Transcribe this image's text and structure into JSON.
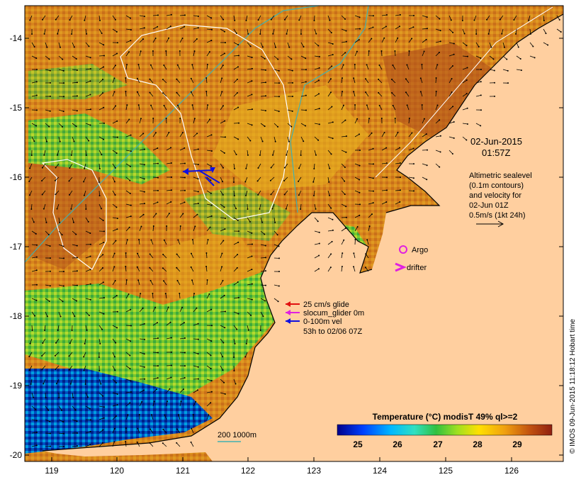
{
  "map": {
    "lon_ticks": [
      "119",
      "120",
      "121",
      "122",
      "123",
      "124",
      "125",
      "126"
    ],
    "lat_ticks": [
      "-14",
      "-15",
      "-16",
      "-17",
      "-18",
      "-19",
      "-20"
    ]
  },
  "timestamp": {
    "date": "02-Jun-2015",
    "time": "01:57Z"
  },
  "altimetry_note": {
    "line1": "Altimetric sealevel",
    "line2": "(0.1m contours)",
    "line3": "and velocity for",
    "line4": "02-Jun 01Z",
    "line5": "0.5m/s (1kt 24h)"
  },
  "markers": {
    "argo": "Argo",
    "drifter": "drifter"
  },
  "legend": {
    "glider_25": "25 cm/s glide",
    "slocum": "slocum_glider 0m",
    "vel": "0-100m vel",
    "vel_period": "53h to 02/06 07Z",
    "colors": {
      "red": "#e01010",
      "magenta": "#e020e0",
      "blue": "#1010e0"
    }
  },
  "isobath": {
    "label": "200  1000m",
    "color": "#40b0b0"
  },
  "colorbar": {
    "title": "Temperature (°C) modisT 49% ql>=2",
    "ticks": [
      "25",
      "26",
      "27",
      "28",
      "29"
    ]
  },
  "credit": "© IMOS 09-Jun-2015 11:18:12 Hobart time",
  "colors": {
    "land": "#ffcf9f",
    "warm": "#d08020",
    "cool": "#30b040",
    "cold": "#0030a0"
  }
}
